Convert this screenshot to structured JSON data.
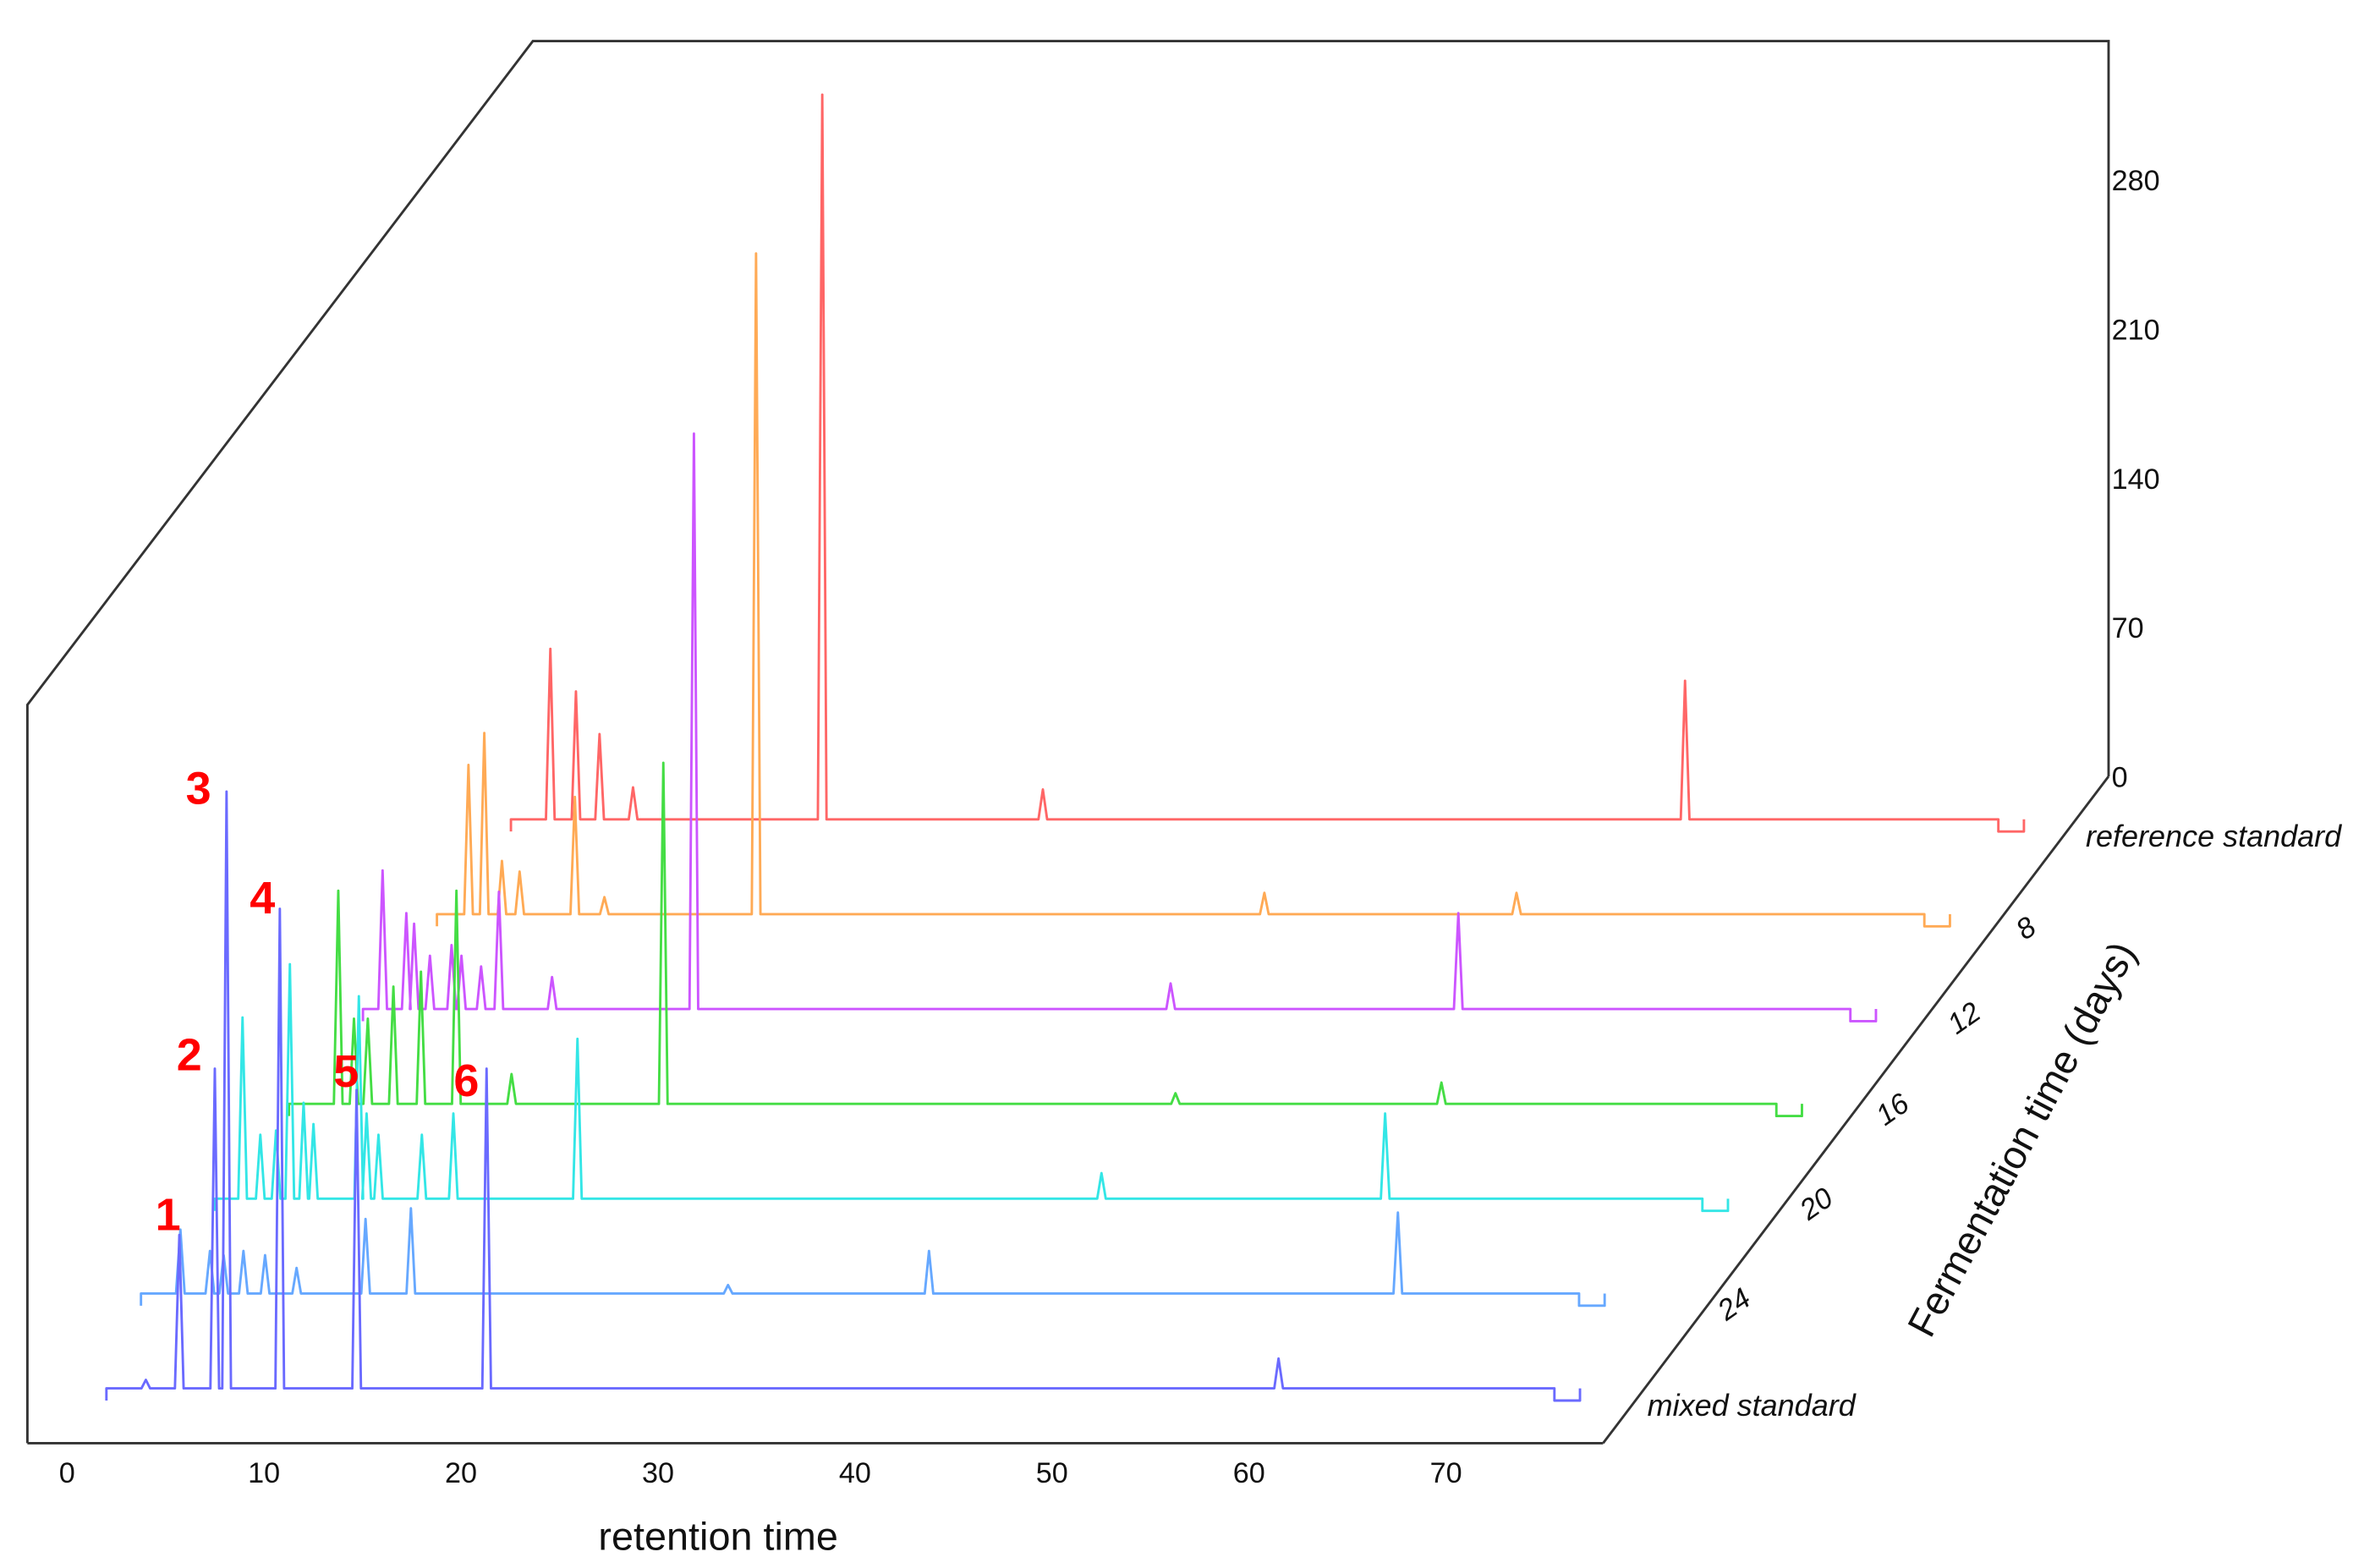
{
  "chart_data": {
    "type": "line",
    "subtype": "3d-waterfall-chromatogram",
    "title": "",
    "xlabel": "retention time",
    "ylabel": "",
    "zlabel": "Fermentation time (days)",
    "x_ticks": [
      "0",
      "10",
      "20",
      "30",
      "40",
      "50",
      "60",
      "70"
    ],
    "y_ticks": [
      "0",
      "70",
      "140",
      "210",
      "280"
    ],
    "depth_ticks": [
      "8",
      "12",
      "16",
      "20",
      "24"
    ],
    "xlim": [
      0,
      78
    ],
    "ylim": [
      0,
      320
    ],
    "grid": false,
    "peak_labels": [
      "1",
      "2",
      "3",
      "4",
      "5",
      "6"
    ],
    "series": [
      {
        "name": "mixed standard",
        "color": "#6a6aff",
        "baseline_start": 2,
        "baseline_end": 75.5,
        "peaks": [
          [
            4.0,
            4
          ],
          [
            5.7,
            72
          ],
          [
            7.5,
            150
          ],
          [
            8.1,
            280
          ],
          [
            10.8,
            225
          ],
          [
            14.7,
            140
          ],
          [
            21.3,
            150
          ],
          [
            61.5,
            14
          ]
        ]
      },
      {
        "name": "24",
        "color": "#66a8ff",
        "baseline_start": 0,
        "baseline_end": 73,
        "peaks": [
          [
            2.0,
            30
          ],
          [
            3.5,
            20
          ],
          [
            4.2,
            18
          ],
          [
            5.2,
            20
          ],
          [
            6.3,
            18
          ],
          [
            7.9,
            12
          ],
          [
            11.4,
            35
          ],
          [
            13.7,
            40
          ],
          [
            29.8,
            4
          ],
          [
            40,
            20
          ],
          [
            63.8,
            38
          ]
        ]
      },
      {
        "name": "20",
        "color": "#33e6e6",
        "baseline_start": 0,
        "baseline_end": 75.5,
        "peaks": [
          [
            1.4,
            85
          ],
          [
            2.3,
            30
          ],
          [
            3.1,
            32
          ],
          [
            3.8,
            110
          ],
          [
            4.5,
            45
          ],
          [
            5.0,
            35
          ],
          [
            7.3,
            95
          ],
          [
            7.7,
            40
          ],
          [
            8.3,
            30
          ],
          [
            10.5,
            30
          ],
          [
            12.1,
            40
          ],
          [
            18.4,
            75
          ],
          [
            45,
            12
          ],
          [
            59.4,
            40
          ]
        ]
      },
      {
        "name": "16",
        "color": "#44dd44",
        "baseline_start": 0,
        "baseline_end": 75.5,
        "peaks": [
          [
            2.5,
            100
          ],
          [
            3.3,
            40
          ],
          [
            4.0,
            40
          ],
          [
            5.3,
            55
          ],
          [
            6.7,
            62
          ],
          [
            8.5,
            100
          ],
          [
            11.3,
            14
          ],
          [
            19.0,
            160
          ],
          [
            45,
            5
          ],
          [
            58.5,
            10
          ]
        ]
      },
      {
        "name": "12",
        "color": "#cc55ff",
        "baseline_start": 0,
        "baseline_end": 75.5,
        "peaks": [
          [
            1.0,
            65
          ],
          [
            2.2,
            45
          ],
          [
            2.6,
            40
          ],
          [
            3.4,
            25
          ],
          [
            4.5,
            30
          ],
          [
            5.0,
            25
          ],
          [
            6.0,
            20
          ],
          [
            6.9,
            55
          ],
          [
            9.6,
            15
          ],
          [
            16.8,
            270
          ],
          [
            41,
            12
          ],
          [
            55.6,
            45
          ]
        ]
      },
      {
        "name": "8",
        "color": "#ffaa55",
        "baseline_start": 0,
        "baseline_end": 75.5,
        "peaks": [
          [
            1.6,
            70
          ],
          [
            2.4,
            85
          ],
          [
            3.3,
            25
          ],
          [
            4.2,
            20
          ],
          [
            7.0,
            55
          ],
          [
            8.5,
            8
          ],
          [
            16.2,
            310
          ],
          [
            42,
            10
          ],
          [
            54.8,
            10
          ]
        ]
      },
      {
        "name": "reference standard",
        "color": "#ff6666",
        "baseline_start": 0,
        "baseline_end": 75.5,
        "peaks": [
          [
            2.0,
            80
          ],
          [
            3.3,
            60
          ],
          [
            4.5,
            40
          ],
          [
            6.2,
            15
          ],
          [
            15.8,
            340
          ],
          [
            27,
            14
          ],
          [
            59.6,
            65
          ]
        ]
      }
    ]
  },
  "labels": {
    "x_axis_title": "retention time",
    "depth_axis_title": "Fermentation time (days)",
    "series_front": "mixed standard",
    "series_back": "reference standard"
  }
}
